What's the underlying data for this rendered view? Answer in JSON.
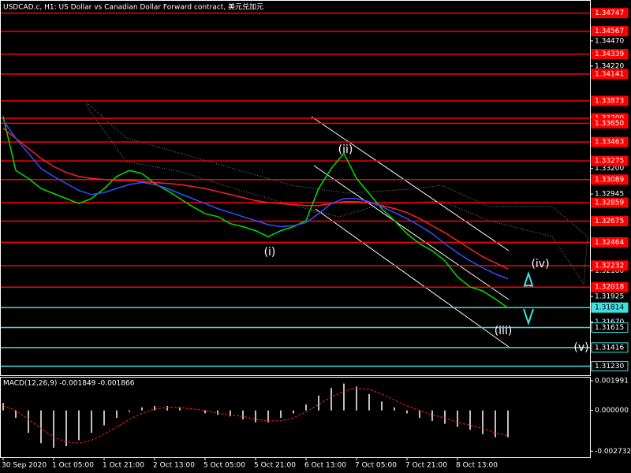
{
  "chart_data": [
    {
      "type": "line",
      "title": "USDCAD.c, H1:  US Dollar vs Canadian Dollar Forward contract, 美元兑加元",
      "categories": [
        "30 Sep 2020",
        null,
        null,
        null,
        "1 Oct 05:00",
        null,
        null,
        null,
        "1 Oct 21:00",
        null,
        null,
        null,
        "2 Oct 13:00",
        null,
        null,
        null,
        "5 Oct 05:00",
        null,
        null,
        null,
        "5 Oct 21:00",
        null,
        null,
        null,
        "6 Oct 13:00",
        null,
        null,
        null,
        "7 Oct 05:00",
        null,
        null,
        null,
        "7 Oct 21:00",
        null,
        null,
        null,
        "8 Oct 13:00",
        null,
        null,
        null,
        null
      ],
      "series": [
        {
          "color": "#00e000",
          "values": [
            1.3372,
            1.3318,
            1.331,
            1.33,
            1.3295,
            1.329,
            1.3285,
            1.329,
            1.33,
            1.3312,
            1.3318,
            1.3315,
            1.3305,
            1.3298,
            1.329,
            1.3282,
            1.3275,
            1.3272,
            1.3265,
            1.3262,
            1.3258,
            1.3252,
            1.3258,
            1.3262,
            1.3268,
            1.33,
            1.332,
            1.3335,
            1.331,
            1.3295,
            1.328,
            1.3268,
            1.3255,
            1.3245,
            1.3238,
            1.3228,
            1.3212,
            1.3202,
            1.3198,
            1.319,
            1.3181
          ]
        },
        {
          "color": "#ff2020",
          "values": [
            1.336,
            1.335,
            1.334,
            1.333,
            1.3322,
            1.3316,
            1.3312,
            1.331,
            1.3309,
            1.3308,
            1.3308,
            1.3307,
            1.3306,
            1.3305,
            1.3304,
            1.3302,
            1.33,
            1.3297,
            1.3294,
            1.3291,
            1.3288,
            1.3286,
            1.3285,
            1.3284,
            1.3283,
            1.3283,
            1.3285,
            1.3287,
            1.3287,
            1.3286,
            1.3283,
            1.328,
            1.3276,
            1.327,
            1.3263,
            1.3256,
            1.3248,
            1.324,
            1.3232,
            1.3226,
            1.322
          ]
        },
        {
          "color": "#3050ff",
          "values": [
            1.3368,
            1.335,
            1.3335,
            1.332,
            1.3312,
            1.3305,
            1.3298,
            1.3294,
            1.3296,
            1.33,
            1.3304,
            1.3306,
            1.3304,
            1.33,
            1.3295,
            1.329,
            1.3285,
            1.328,
            1.3276,
            1.3272,
            1.3268,
            1.3264,
            1.3262,
            1.3263,
            1.3266,
            1.3275,
            1.3285,
            1.329,
            1.329,
            1.3287,
            1.3282,
            1.3276,
            1.327,
            1.3263,
            1.3255,
            1.3245,
            1.3236,
            1.3228,
            1.3221,
            1.3215,
            1.321
          ]
        }
      ],
      "ylim": [
        1.3114,
        1.3487
      ],
      "yticks": [
        {
          "value": 1.3447,
          "label": "1.34470"
        },
        {
          "value": 1.3422,
          "label": "1.34220"
        },
        {
          "value": 1.3371,
          "label": "1.33710"
        },
        {
          "value": 1.332,
          "label": "1.33200"
        },
        {
          "value": 1.32945,
          "label": "1.32945"
        },
        {
          "value": 1.3218,
          "label": "1.32180"
        },
        {
          "value": 1.31925,
          "label": "1.31925"
        },
        {
          "value": 1.3167,
          "label": "1.31670"
        }
      ],
      "levels": [
        {
          "value": 1.34747,
          "label": "1.34747",
          "color": "#ff0000"
        },
        {
          "value": 1.34567,
          "label": "1.34567",
          "color": "#ff0000"
        },
        {
          "value": 1.34339,
          "label": "1.34339",
          "color": "#ff0000"
        },
        {
          "value": 1.34141,
          "label": "1.34141",
          "color": "#ff0000"
        },
        {
          "value": 1.33873,
          "label": "1.33873",
          "color": "#ff0000"
        },
        {
          "value": 1.337,
          "label": "1.33700",
          "color": "#ff0000"
        },
        {
          "value": 1.3365,
          "label": "1.33650",
          "color": "#ff0000"
        },
        {
          "value": 1.33463,
          "label": "1.33463",
          "color": "#ff0000"
        },
        {
          "value": 1.33275,
          "label": "1.33275",
          "color": "#ff0000"
        },
        {
          "value": 1.33089,
          "label": "1.33089",
          "color": "#ff0000"
        },
        {
          "value": 1.32859,
          "label": "1.32859",
          "color": "#ff0000"
        },
        {
          "value": 1.32675,
          "label": "1.32675",
          "color": "#ff0000"
        },
        {
          "value": 1.32464,
          "label": "1.32464",
          "color": "#ff0000"
        },
        {
          "value": 1.32232,
          "label": "1.32232",
          "color": "#ff0000"
        },
        {
          "value": 1.32018,
          "label": "1.32018",
          "color": "#ff0000"
        },
        {
          "value": 1.31814,
          "label": "1.31814",
          "color": "#40e0e0",
          "current": true
        },
        {
          "value": 1.31615,
          "label": "1.31615",
          "color": "#40e0e0"
        },
        {
          "value": 1.31416,
          "label": "1.31416",
          "color": "#40e0e0"
        },
        {
          "value": 1.3123,
          "label": "1.31230",
          "color": "#40e0e0"
        }
      ],
      "annotations": [
        "(i)",
        "(ii)",
        "(iii)",
        "(iv)",
        "(v)"
      ]
    },
    {
      "type": "bar",
      "title": "MACD(12,26,9) -0.001849 -0.001866",
      "series": [
        {
          "color": "#c0c0c0",
          "values": [
            0.0005,
            -0.0005,
            -0.0015,
            -0.0022,
            -0.0025,
            -0.0024,
            -0.002,
            -0.0015,
            -0.001,
            -0.0005,
            -0.0001,
            0.0002,
            0.0003,
            0.0003,
            0.0002,
            0,
            -0.0002,
            -0.0003,
            -0.0004,
            -0.0006,
            -0.0008,
            -0.0008,
            -0.0005,
            -0.0002,
            0.0004,
            0.001,
            0.0015,
            0.0018,
            0.0016,
            0.0011,
            0.0006,
            0.0002,
            -0.0002,
            -0.0005,
            -0.0007,
            -0.0009,
            -0.0011,
            -0.0013,
            -0.0016,
            -0.0018,
            -0.0018
          ]
        },
        {
          "color": "#ff2020",
          "values": [
            0.0003,
            0,
            -0.0006,
            -0.0012,
            -0.0018,
            -0.0021,
            -0.0022,
            -0.002,
            -0.0016,
            -0.0011,
            -0.0006,
            -0.0002,
            0.0001,
            0.0002,
            0.0002,
            0.0001,
            0,
            -0.0002,
            -0.0003,
            -0.0004,
            -0.0006,
            -0.0007,
            -0.0007,
            -0.0005,
            -0.0001,
            0.0004,
            0.0009,
            0.0013,
            0.0015,
            0.0014,
            0.0011,
            0.0007,
            0.0003,
            0,
            -0.0003,
            -0.0005,
            -0.0008,
            -0.001,
            -0.0012,
            -0.0015,
            -0.0017
          ]
        }
      ],
      "ylim": [
        -0.00314,
        0.0022
      ],
      "yticks": [
        {
          "value": 0.001991,
          "label": "0.001991"
        },
        {
          "value": 0,
          "label": "0.000000"
        },
        {
          "value": -0.002732,
          "label": "-0.002732"
        }
      ]
    }
  ]
}
